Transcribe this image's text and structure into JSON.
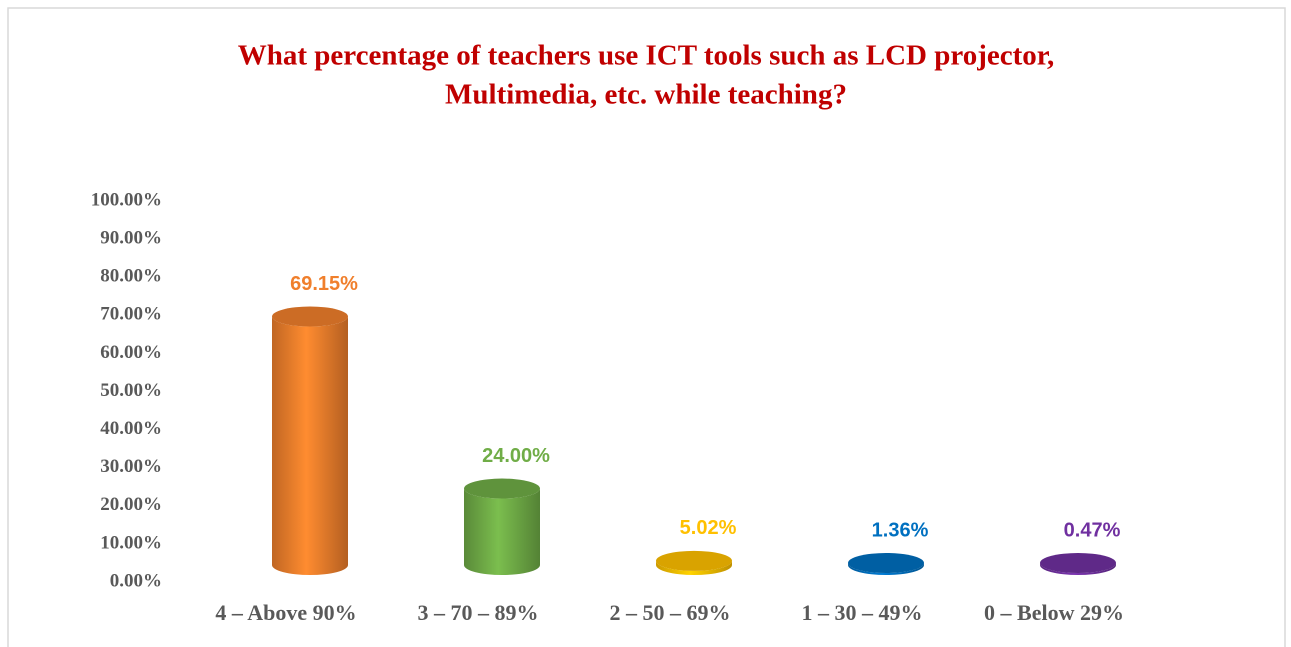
{
  "chart_data": {
    "type": "bar",
    "title": [
      "What percentage of teachers use ICT tools such as LCD projector,",
      "Multimedia, etc. while teaching?"
    ],
    "categories": [
      "4 – Above 90%",
      "3 – 70 – 89%",
      "2 – 50 – 69%",
      "1 – 30 – 49%",
      "0 – Below 29%"
    ],
    "values": [
      69.15,
      24.0,
      5.02,
      1.36,
      0.47
    ],
    "value_labels": [
      "69.15%",
      "24.00%",
      "5.02%",
      "1.36%",
      "0.47%"
    ],
    "colors": [
      "#f07f2c",
      "#70ad47",
      "#ffc000",
      "#0070c0",
      "#7030a0"
    ],
    "ylim": [
      0,
      100
    ],
    "yticks": [
      {
        "value": 0,
        "label": "0.00%"
      },
      {
        "value": 10,
        "label": "10.00%"
      },
      {
        "value": 20,
        "label": "20.00%"
      },
      {
        "value": 30,
        "label": "30.00%"
      },
      {
        "value": 40,
        "label": "40.00%"
      },
      {
        "value": 50,
        "label": "50.00%"
      },
      {
        "value": 60,
        "label": "60.00%"
      },
      {
        "value": 70,
        "label": "70.00%"
      },
      {
        "value": 80,
        "label": "80.00%"
      },
      {
        "value": 90,
        "label": "90.00%"
      },
      {
        "value": 100,
        "label": "100.00%"
      }
    ]
  }
}
